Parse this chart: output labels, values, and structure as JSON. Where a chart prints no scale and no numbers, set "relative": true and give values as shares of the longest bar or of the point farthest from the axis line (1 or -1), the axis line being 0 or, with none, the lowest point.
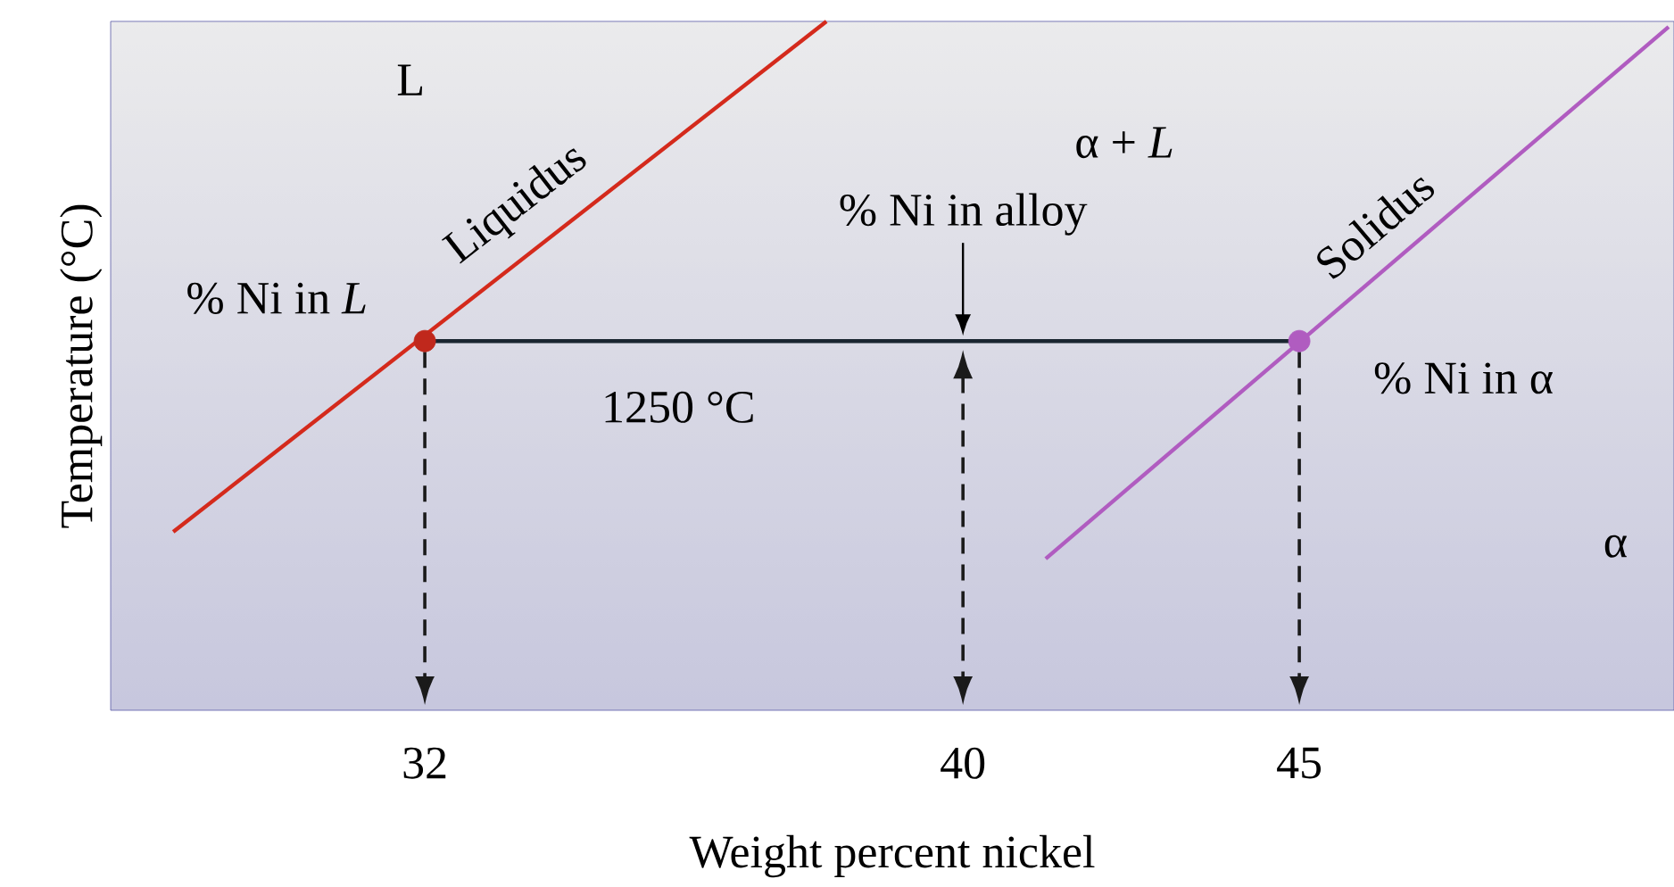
{
  "chart_data": {
    "type": "line",
    "relative": true,
    "xlabel": "Weight percent nickel",
    "ylabel": "Temperature (°C)",
    "xlim": [
      27.33,
      50.57
    ],
    "xticks": [
      32,
      40,
      45
    ],
    "marker": "none",
    "line_style": "solid",
    "series": [
      {
        "name": "Liquidus",
        "color": "#d42a1c",
        "x": [
          28.26,
          37.97
        ],
        "values": [
          0.259,
          1
        ]
      },
      {
        "name": "Solidus",
        "color": "#b05cc0",
        "x": [
          41.23,
          50.49
        ],
        "values": [
          0.22,
          0.992
        ]
      },
      {
        "color": "#1a2630",
        "x": [
          32,
          45
        ],
        "values": [
          0.536,
          0.536
        ]
      },
      {
        "type": "scatter",
        "color": "#c0281c",
        "x": [
          32
        ],
        "values": [
          0.536
        ],
        "marker": "circle"
      },
      {
        "type": "scatter",
        "color": "#b05cc0",
        "x": [
          45
        ],
        "values": [
          0.536
        ],
        "marker": "circle"
      }
    ],
    "annotations": [
      "L",
      "α + *L*",
      "% Ni in *L*",
      "% Ni in alloy",
      "1250 °C",
      "% Ni in α",
      "α"
    ]
  }
}
